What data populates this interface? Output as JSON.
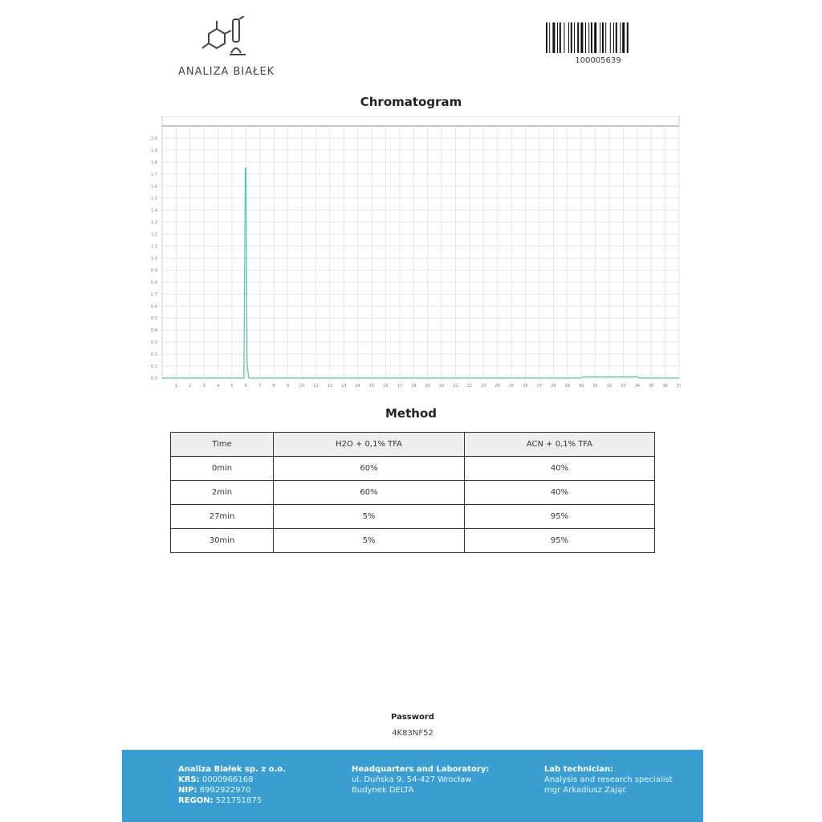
{
  "header": {
    "logo_text": "ANALIZA BIAŁEK",
    "barcode_number": "100005639"
  },
  "chart_title": "Chromatogram",
  "chart_data": {
    "type": "line",
    "title": "Chromatogram",
    "xlim": [
      0,
      37
    ],
    "ylim": [
      0,
      2.1
    ],
    "x_ticks": [
      1,
      2,
      3,
      4,
      5,
      6,
      7,
      8,
      9,
      10,
      11,
      12,
      13,
      14,
      15,
      16,
      17,
      18,
      19,
      20,
      21,
      22,
      23,
      24,
      25,
      26,
      27,
      28,
      29,
      30,
      31,
      32,
      33,
      34,
      35,
      36,
      37
    ],
    "y_ticks": [
      0.0,
      0.1,
      0.2,
      0.3,
      0.4,
      0.5,
      0.6,
      0.7,
      0.8,
      0.9,
      1.0,
      1.1,
      1.2,
      1.3,
      1.4,
      1.5,
      1.6,
      1.7,
      1.8,
      1.9,
      2.0
    ],
    "grid": true,
    "series": [
      {
        "color": "#5fbfae",
        "x": [
          0,
          5.85,
          5.95,
          6.0,
          6.08,
          6.2,
          30,
          30.1,
          34,
          34.2,
          37
        ],
        "y": [
          0,
          0,
          1.75,
          1.75,
          0.12,
          0,
          0,
          0.01,
          0.01,
          0,
          0
        ]
      }
    ]
  },
  "method": {
    "title": "Method",
    "headers": [
      "Time",
      "H2O + 0,1% TFA",
      "ACN + 0,1% TFA"
    ],
    "rows": [
      [
        "0min",
        "60%",
        "40%"
      ],
      [
        "2min",
        "60%",
        "40%"
      ],
      [
        "27min",
        "5%",
        "95%"
      ],
      [
        "30min",
        "5%",
        "95%"
      ]
    ]
  },
  "password": {
    "label": "Password",
    "value": "4K83NF52"
  },
  "footer": {
    "company": "Analiza Białek sp. z o.o.",
    "krs_label": "KRS:",
    "krs": "0000966168",
    "nip_label": "NIP:",
    "nip": "8992922970",
    "regon_label": "REGON:",
    "regon": "521751875",
    "hq_title": "Headquarters and Laboratory:",
    "hq_line1": "ul. Duńska 9, 54-427 Wrocław",
    "hq_line2": "Budynek DELTA",
    "tech_title": "Lab technician:",
    "tech_line1": "Analysis and research specialist",
    "tech_line2": "mgr Arkadiusz Zając"
  }
}
